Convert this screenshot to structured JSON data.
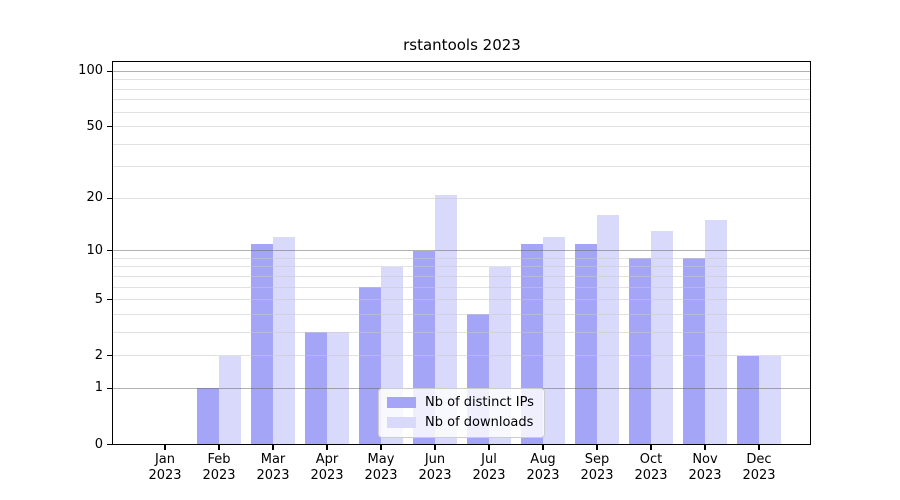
{
  "figure": {
    "title": "rstantools 2023"
  },
  "chart_data": {
    "type": "bar",
    "title": "rstantools 2023",
    "categories": [
      "Jan 2023",
      "Feb 2023",
      "Mar 2023",
      "Apr 2023",
      "May 2023",
      "Jun 2023",
      "Jul 2023",
      "Aug 2023",
      "Sep 2023",
      "Oct 2023",
      "Nov 2023",
      "Dec 2023"
    ],
    "series": [
      {
        "name": "Nb of distinct IPs",
        "color": "#a5a5f8",
        "values": [
          0,
          1,
          11,
          3,
          6,
          10,
          4,
          11,
          11,
          9,
          9,
          2
        ]
      },
      {
        "name": "Nb of downloads",
        "color": "#d9d9fb",
        "values": [
          0,
          2,
          12,
          3,
          8,
          21,
          8,
          12,
          16,
          13,
          15,
          2
        ]
      }
    ],
    "xlabel": "",
    "ylabel": "",
    "y_scale": "log1p",
    "ylim": [
      0,
      112
    ],
    "y_ticks": [
      0,
      1,
      2,
      5,
      10,
      20,
      50,
      100
    ],
    "y_major_gridlines": [
      1,
      10,
      100
    ],
    "y_minor_gridlines": [
      2,
      3,
      4,
      5,
      6,
      7,
      8,
      9,
      20,
      30,
      40,
      50,
      60,
      70,
      80,
      90
    ],
    "grid": "on",
    "legend_position": "lower center",
    "colors": {
      "series_ips": "#a5a5f8",
      "series_downloads": "#d9d9fb",
      "axis": "#000000",
      "major_grid": "#b2b2b2",
      "minor_grid": "#e1e1e1",
      "background": "#ffffff"
    }
  }
}
